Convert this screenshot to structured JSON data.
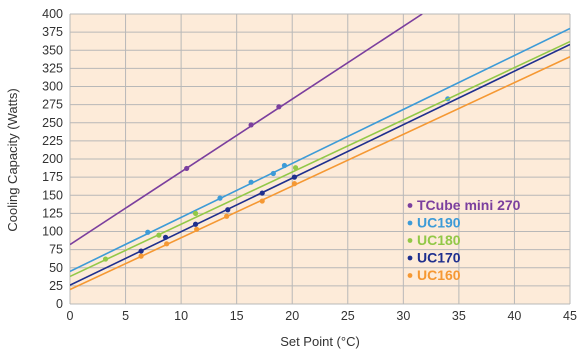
{
  "chart_data": {
    "type": "line",
    "title": "",
    "xlabel": "Set Point (°C)",
    "ylabel": "Cooling Capacity (Watts)",
    "xlim": [
      0,
      45
    ],
    "ylim": [
      0,
      400
    ],
    "x_ticks": [
      0,
      5,
      10,
      15,
      20,
      25,
      30,
      35,
      40,
      45
    ],
    "y_ticks": [
      0,
      25,
      50,
      75,
      100,
      125,
      150,
      175,
      200,
      225,
      250,
      275,
      300,
      325,
      350,
      375,
      400
    ],
    "grid": true,
    "legend_position": "bottom-right",
    "plot_background": "#fdebd9",
    "gridline_color": "#b8b8b8",
    "series": [
      {
        "name": "TCube mini 270",
        "color": "#7b3f9e",
        "line": {
          "x": [
            0,
            31.7
          ],
          "y": [
            82,
            400
          ]
        },
        "points": {
          "x": [
            10.5,
            16.3,
            18.8
          ],
          "y": [
            187,
            247,
            272
          ]
        }
      },
      {
        "name": "UC190",
        "color": "#3d9bd7",
        "line": {
          "x": [
            0,
            45
          ],
          "y": [
            45,
            380
          ]
        },
        "points": {
          "x": [
            7,
            13.5,
            16.3,
            18.3,
            19.3,
            34
          ],
          "y": [
            99,
            146,
            168,
            180,
            191,
            283
          ]
        }
      },
      {
        "name": "UC180",
        "color": "#92c847",
        "line": {
          "x": [
            0,
            45
          ],
          "y": [
            38,
            362
          ]
        },
        "points": {
          "x": [
            3.2,
            8,
            11.3,
            20.3
          ],
          "y": [
            62,
            95,
            125,
            188
          ]
        }
      },
      {
        "name": "UC170",
        "color": "#1f2f8e",
        "line": {
          "x": [
            0,
            45
          ],
          "y": [
            26,
            358
          ]
        },
        "points": {
          "x": [
            6.4,
            8.6,
            11.3,
            14.2,
            17.3,
            20.2
          ],
          "y": [
            73,
            92,
            110,
            130,
            153,
            175
          ]
        }
      },
      {
        "name": "UC160",
        "color": "#f59833",
        "line": {
          "x": [
            0,
            45
          ],
          "y": [
            20,
            341
          ]
        },
        "points": {
          "x": [
            6.4,
            8.7,
            11.4,
            14.1,
            17.3,
            20.2
          ],
          "y": [
            66,
            83,
            103,
            121,
            142,
            166
          ]
        }
      }
    ]
  }
}
